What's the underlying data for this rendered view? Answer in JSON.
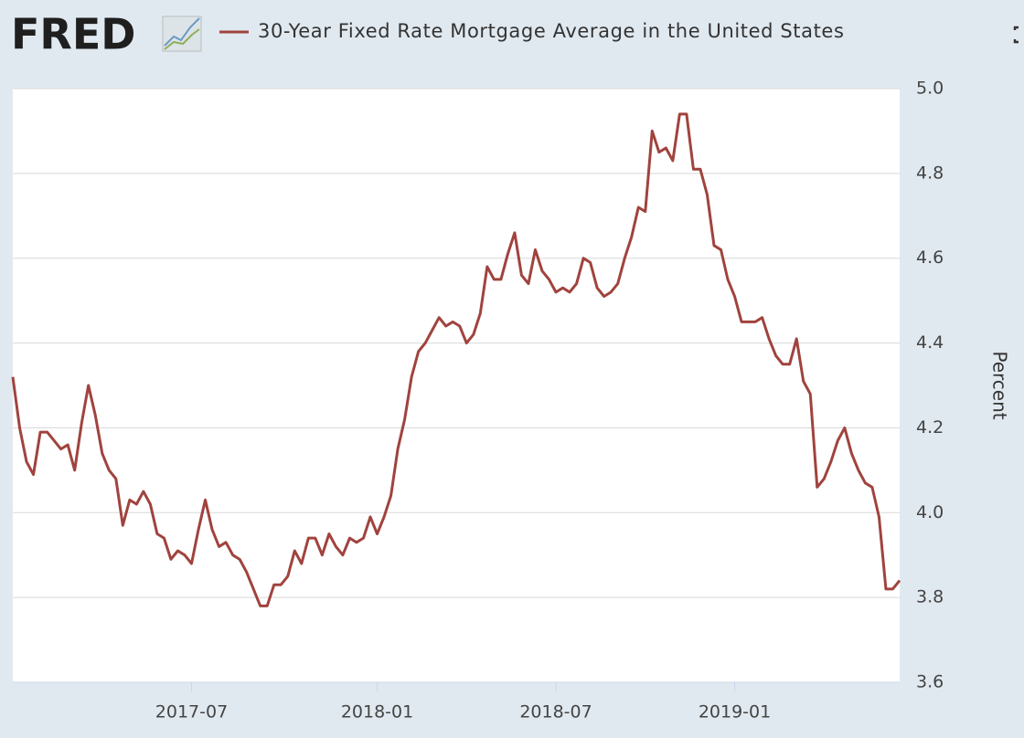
{
  "header": {
    "logo": "FRED"
  },
  "chart_data": {
    "type": "line",
    "categories": [
      null,
      null,
      null,
      null,
      null,
      null,
      null,
      null,
      null,
      null,
      null,
      null,
      null,
      null,
      null,
      null,
      null,
      null,
      null,
      null,
      null,
      null,
      null,
      null,
      null,
      null,
      "2017-07",
      null,
      null,
      null,
      null,
      null,
      null,
      null,
      null,
      null,
      null,
      null,
      null,
      null,
      null,
      null,
      null,
      null,
      null,
      null,
      null,
      null,
      null,
      null,
      null,
      null,
      null,
      "2018-01",
      null,
      null,
      null,
      null,
      null,
      null,
      null,
      null,
      null,
      null,
      null,
      null,
      null,
      null,
      null,
      null,
      null,
      null,
      null,
      null,
      null,
      null,
      null,
      null,
      null,
      "2018-07",
      null,
      null,
      null,
      null,
      null,
      null,
      null,
      null,
      null,
      null,
      null,
      null,
      null,
      null,
      null,
      null,
      null,
      null,
      null,
      null,
      null,
      null,
      null,
      null,
      null,
      "2019-01",
      null,
      null,
      null,
      null,
      null,
      null,
      null,
      null,
      null,
      null,
      null,
      null,
      null,
      null,
      null,
      null,
      null,
      null,
      null,
      null,
      null,
      null,
      null,
      null
    ],
    "series": [
      {
        "name": "30-Year Fixed Rate Mortgage Average in the United States",
        "color": "#a0433e",
        "values": [
          4.32,
          4.2,
          4.12,
          4.09,
          4.19,
          4.19,
          4.17,
          4.15,
          4.16,
          4.1,
          4.21,
          4.3,
          4.23,
          4.14,
          4.1,
          4.08,
          3.97,
          4.03,
          4.02,
          4.05,
          4.02,
          3.95,
          3.94,
          3.89,
          3.91,
          3.9,
          3.88,
          3.96,
          4.03,
          3.96,
          3.92,
          3.93,
          3.9,
          3.89,
          3.86,
          3.82,
          3.78,
          3.78,
          3.83,
          3.83,
          3.85,
          3.91,
          3.88,
          3.94,
          3.94,
          3.9,
          3.95,
          3.92,
          3.9,
          3.94,
          3.93,
          3.94,
          3.99,
          3.95,
          3.99,
          4.04,
          4.15,
          4.22,
          4.32,
          4.38,
          4.4,
          4.43,
          4.46,
          4.44,
          4.45,
          4.44,
          4.4,
          4.42,
          4.47,
          4.58,
          4.55,
          4.55,
          4.61,
          4.66,
          4.56,
          4.54,
          4.62,
          4.57,
          4.55,
          4.52,
          4.53,
          4.52,
          4.54,
          4.6,
          4.59,
          4.53,
          4.51,
          4.52,
          4.54,
          4.6,
          4.65,
          4.72,
          4.71,
          4.9,
          4.85,
          4.86,
          4.83,
          4.94,
          4.94,
          4.81,
          4.81,
          4.75,
          4.63,
          4.62,
          4.55,
          4.51,
          4.45,
          4.45,
          4.45,
          4.46,
          4.41,
          4.37,
          4.35,
          4.35,
          4.41,
          4.31,
          4.28,
          4.06,
          4.08,
          4.12,
          4.17,
          4.2,
          4.14,
          4.1,
          4.07,
          4.06,
          3.99,
          3.82,
          3.82,
          3.84
        ]
      }
    ],
    "y_label": "Percent",
    "ylim": [
      3.6,
      5.0
    ],
    "yticks": [
      3.6,
      3.8,
      {
        "value": 4.0,
        "label": "4.0"
      },
      4.2,
      4.4,
      4.6,
      4.8,
      {
        "value": 5.0,
        "label": "5.0"
      }
    ],
    "grid": true
  }
}
